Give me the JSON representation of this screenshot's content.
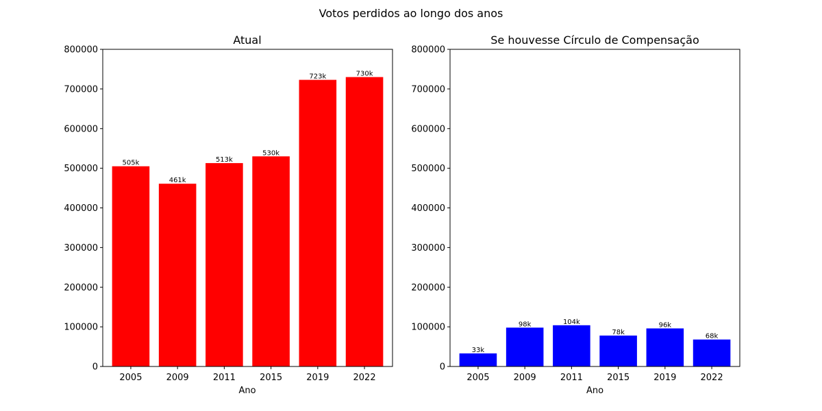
{
  "figure": {
    "suptitle": "Votos perdidos ao longo dos anos"
  },
  "chart_data": [
    {
      "type": "bar",
      "title": "Atual",
      "xlabel": "Ano",
      "ylabel": "",
      "categories": [
        "2005",
        "2009",
        "2011",
        "2015",
        "2019",
        "2022"
      ],
      "values": [
        505000,
        461000,
        513000,
        530000,
        723000,
        730000
      ],
      "bar_labels": [
        "505k",
        "461k",
        "513k",
        "530k",
        "723k",
        "730k"
      ],
      "color": "#ff0000",
      "ylim": [
        0,
        800000
      ],
      "yticks": [
        0,
        100000,
        200000,
        300000,
        400000,
        500000,
        600000,
        700000,
        800000
      ],
      "grid": false
    },
    {
      "type": "bar",
      "title": "Se houvesse Círculo de Compensação",
      "xlabel": "Ano",
      "ylabel": "",
      "categories": [
        "2005",
        "2009",
        "2011",
        "2015",
        "2019",
        "2022"
      ],
      "values": [
        33000,
        98000,
        104000,
        78000,
        96000,
        68000
      ],
      "bar_labels": [
        "33k",
        "98k",
        "104k",
        "78k",
        "96k",
        "68k"
      ],
      "color": "#0000ff",
      "ylim": [
        0,
        800000
      ],
      "yticks": [
        0,
        100000,
        200000,
        300000,
        400000,
        500000,
        600000,
        700000,
        800000
      ],
      "grid": false
    }
  ]
}
